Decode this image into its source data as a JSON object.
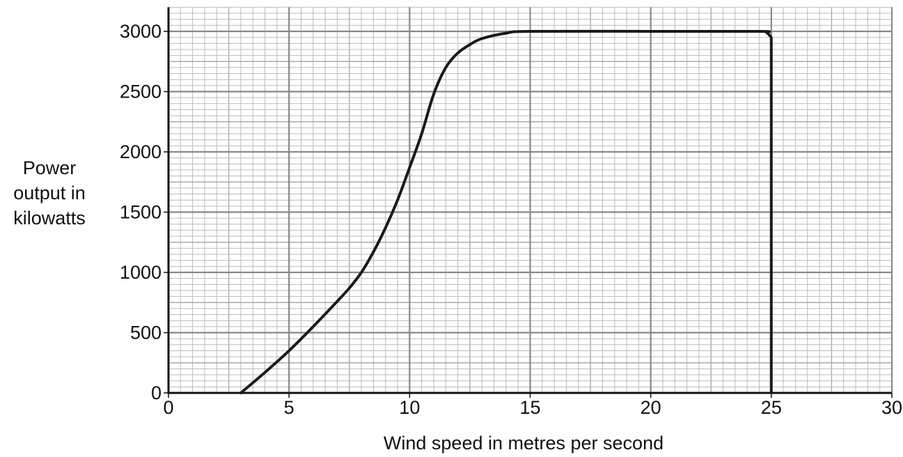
{
  "chart_data": {
    "type": "line",
    "title": "",
    "xlabel": "Wind speed in metres per second",
    "ylabel_lines": [
      "Power",
      "output in",
      "kilowatts"
    ],
    "xlim": [
      0,
      30
    ],
    "ylim": [
      0,
      3200
    ],
    "x_ticks": [
      0,
      5,
      10,
      15,
      20,
      25,
      30
    ],
    "y_ticks": [
      0,
      500,
      1000,
      1500,
      2000,
      2500,
      3000
    ],
    "grid": "on",
    "x_minor_step": 0.5,
    "y_minor_step": 50,
    "series": [
      {
        "x": [
          3,
          4,
          5,
          6,
          7,
          7.5,
          8,
          8.5,
          9,
          9.5,
          10,
          10.5,
          11,
          11.5,
          12,
          12.5,
          13,
          14,
          15,
          20,
          24.5,
          24.8,
          25,
          25
        ],
        "y": [
          0,
          170,
          350,
          550,
          760,
          870,
          1000,
          1170,
          1370,
          1600,
          1870,
          2150,
          2480,
          2700,
          2820,
          2890,
          2940,
          2985,
          3000,
          3000,
          3000,
          2990,
          2950,
          0
        ]
      }
    ]
  }
}
